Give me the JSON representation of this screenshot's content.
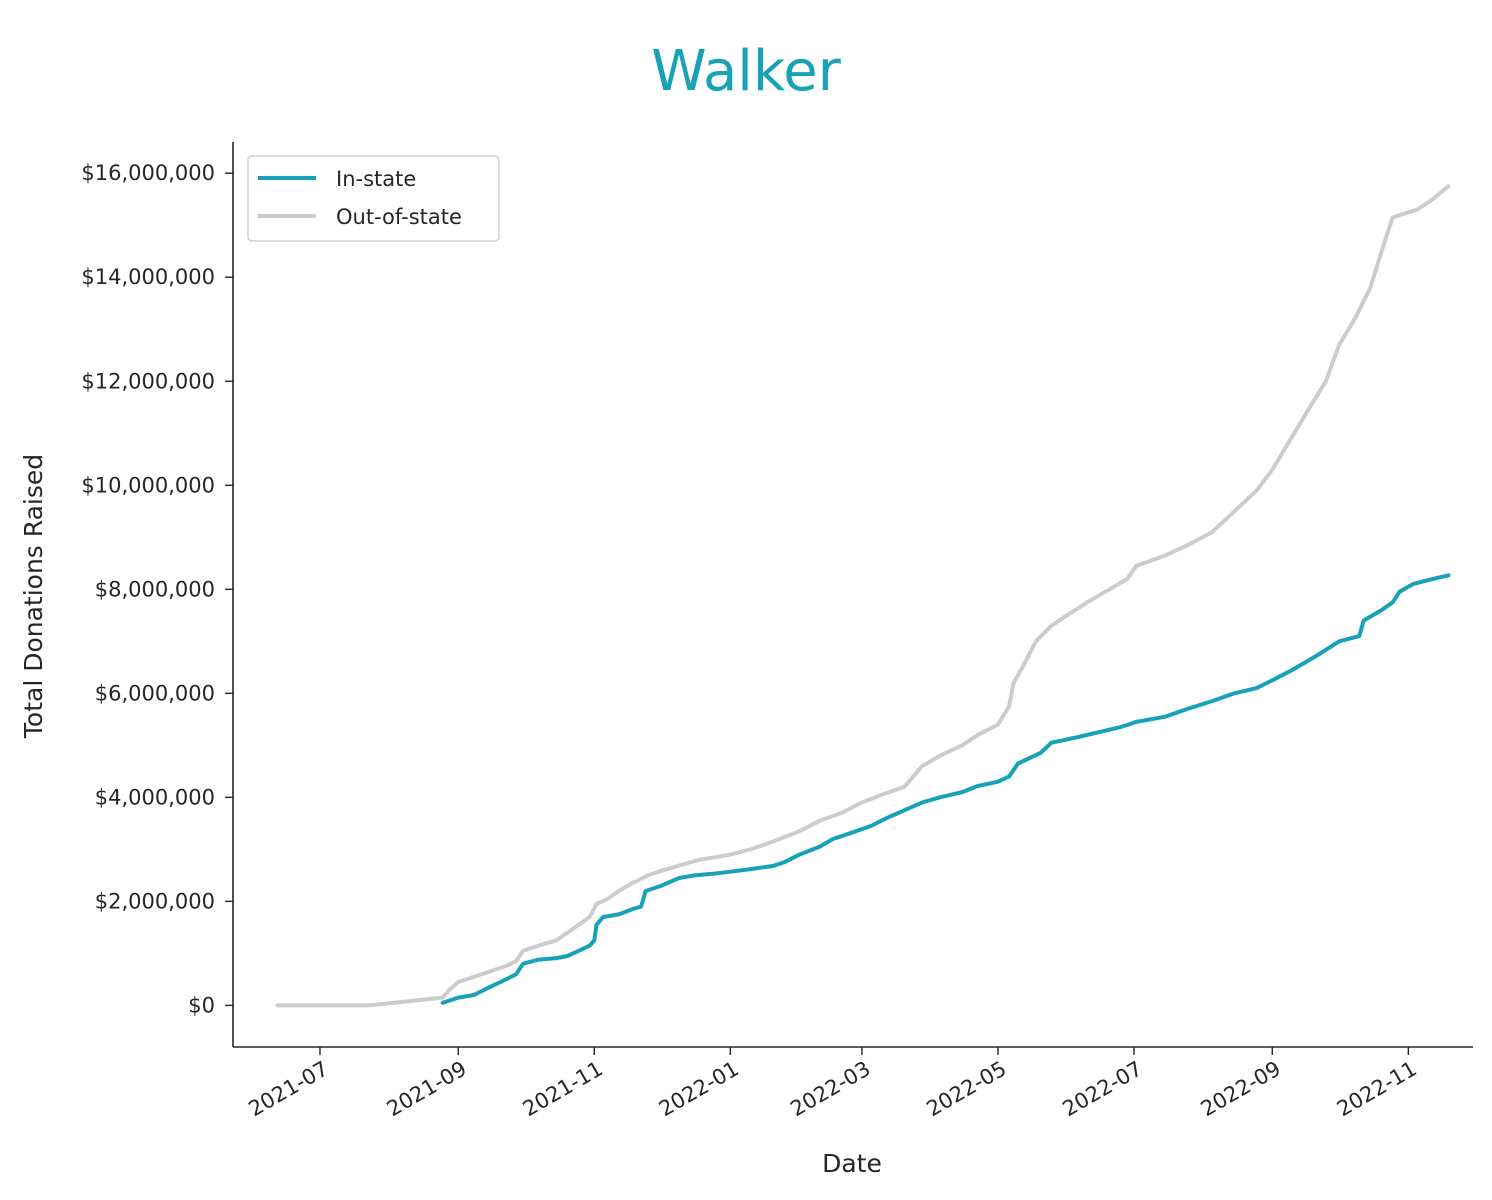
{
  "chart_data": {
    "type": "line",
    "title": "Walker",
    "xlabel": "Date",
    "ylabel": "Total Donations Raised",
    "x_ticks": [
      "2021-07",
      "2021-09",
      "2021-11",
      "2022-01",
      "2022-03",
      "2022-05",
      "2022-07",
      "2022-09",
      "2022-11"
    ],
    "y_ticks": [
      "$0",
      "$2,000,000",
      "$4,000,000",
      "$6,000,000",
      "$8,000,000",
      "$10,000,000",
      "$12,000,000",
      "$14,000,000",
      "$16,000,000"
    ],
    "xlim": [
      "2021-05-23",
      "2022-11-30"
    ],
    "ylim": [
      -800000,
      16600000
    ],
    "grid": false,
    "legend_position": "top-left",
    "series": [
      {
        "name": "In-state",
        "color": "#17a2b8",
        "points": [
          [
            "2021-08-25",
            50000
          ],
          [
            "2021-09-01",
            150000
          ],
          [
            "2021-09-08",
            200000
          ],
          [
            "2021-09-15",
            350000
          ],
          [
            "2021-09-20",
            450000
          ],
          [
            "2021-09-27",
            600000
          ],
          [
            "2021-09-30",
            800000
          ],
          [
            "2021-10-07",
            880000
          ],
          [
            "2021-10-15",
            910000
          ],
          [
            "2021-10-20",
            950000
          ],
          [
            "2021-10-25",
            1050000
          ],
          [
            "2021-10-30",
            1150000
          ],
          [
            "2021-11-01",
            1250000
          ],
          [
            "2021-11-02",
            1550000
          ],
          [
            "2021-11-05",
            1700000
          ],
          [
            "2021-11-12",
            1750000
          ],
          [
            "2021-11-18",
            1850000
          ],
          [
            "2021-11-22",
            1900000
          ],
          [
            "2021-11-24",
            2200000
          ],
          [
            "2021-12-01",
            2300000
          ],
          [
            "2021-12-09",
            2450000
          ],
          [
            "2021-12-16",
            2500000
          ],
          [
            "2021-12-24",
            2530000
          ],
          [
            "2022-01-01",
            2570000
          ],
          [
            "2022-01-10",
            2620000
          ],
          [
            "2022-01-20",
            2680000
          ],
          [
            "2022-01-25",
            2750000
          ],
          [
            "2022-02-01",
            2900000
          ],
          [
            "2022-02-10",
            3050000
          ],
          [
            "2022-02-16",
            3200000
          ],
          [
            "2022-02-23",
            3300000
          ],
          [
            "2022-03-05",
            3450000
          ],
          [
            "2022-03-12",
            3600000
          ],
          [
            "2022-03-20",
            3750000
          ],
          [
            "2022-03-28",
            3900000
          ],
          [
            "2022-04-05",
            4000000
          ],
          [
            "2022-04-15",
            4100000
          ],
          [
            "2022-04-22",
            4220000
          ],
          [
            "2022-05-01",
            4300000
          ],
          [
            "2022-05-06",
            4400000
          ],
          [
            "2022-05-10",
            4650000
          ],
          [
            "2022-05-20",
            4850000
          ],
          [
            "2022-05-25",
            5050000
          ],
          [
            "2022-06-05",
            5150000
          ],
          [
            "2022-06-15",
            5250000
          ],
          [
            "2022-06-25",
            5350000
          ],
          [
            "2022-07-02",
            5450000
          ],
          [
            "2022-07-15",
            5550000
          ],
          [
            "2022-07-25",
            5700000
          ],
          [
            "2022-08-05",
            5850000
          ],
          [
            "2022-08-15",
            6000000
          ],
          [
            "2022-08-25",
            6100000
          ],
          [
            "2022-09-01",
            6250000
          ],
          [
            "2022-09-10",
            6450000
          ],
          [
            "2022-09-20",
            6700000
          ],
          [
            "2022-10-01",
            7000000
          ],
          [
            "2022-10-10",
            7100000
          ],
          [
            "2022-10-12",
            7400000
          ],
          [
            "2022-10-20",
            7600000
          ],
          [
            "2022-10-25",
            7750000
          ],
          [
            "2022-10-28",
            7950000
          ],
          [
            "2022-11-03",
            8100000
          ],
          [
            "2022-11-12",
            8200000
          ],
          [
            "2022-11-19",
            8270000
          ]
        ]
      },
      {
        "name": "Out-of-state",
        "color": "#cccccc",
        "points": [
          [
            "2021-06-12",
            0
          ],
          [
            "2021-07-23",
            0
          ],
          [
            "2021-08-25",
            150000
          ],
          [
            "2021-08-28",
            300000
          ],
          [
            "2021-09-01",
            450000
          ],
          [
            "2021-09-08",
            550000
          ],
          [
            "2021-09-15",
            650000
          ],
          [
            "2021-09-22",
            750000
          ],
          [
            "2021-09-27",
            850000
          ],
          [
            "2021-09-30",
            1050000
          ],
          [
            "2021-10-07",
            1150000
          ],
          [
            "2021-10-15",
            1250000
          ],
          [
            "2021-10-20",
            1400000
          ],
          [
            "2021-10-25",
            1550000
          ],
          [
            "2021-10-30",
            1700000
          ],
          [
            "2021-11-02",
            1950000
          ],
          [
            "2021-11-07",
            2050000
          ],
          [
            "2021-11-12",
            2200000
          ],
          [
            "2021-11-18",
            2350000
          ],
          [
            "2021-11-25",
            2500000
          ],
          [
            "2021-12-02",
            2600000
          ],
          [
            "2021-12-10",
            2700000
          ],
          [
            "2021-12-18",
            2800000
          ],
          [
            "2022-01-01",
            2900000
          ],
          [
            "2022-01-10",
            3000000
          ],
          [
            "2022-01-20",
            3150000
          ],
          [
            "2022-02-01",
            3350000
          ],
          [
            "2022-02-10",
            3550000
          ],
          [
            "2022-02-20",
            3700000
          ],
          [
            "2022-03-01",
            3900000
          ],
          [
            "2022-03-10",
            4050000
          ],
          [
            "2022-03-20",
            4200000
          ],
          [
            "2022-03-28",
            4600000
          ],
          [
            "2022-04-05",
            4800000
          ],
          [
            "2022-04-15",
            5000000
          ],
          [
            "2022-04-22",
            5200000
          ],
          [
            "2022-05-01",
            5400000
          ],
          [
            "2022-05-06",
            5750000
          ],
          [
            "2022-05-08",
            6200000
          ],
          [
            "2022-05-12",
            6500000
          ],
          [
            "2022-05-18",
            7000000
          ],
          [
            "2022-05-25",
            7300000
          ],
          [
            "2022-06-01",
            7500000
          ],
          [
            "2022-06-10",
            7750000
          ],
          [
            "2022-06-20",
            8000000
          ],
          [
            "2022-06-28",
            8200000
          ],
          [
            "2022-07-02",
            8450000
          ],
          [
            "2022-07-15",
            8650000
          ],
          [
            "2022-07-25",
            8850000
          ],
          [
            "2022-08-05",
            9100000
          ],
          [
            "2022-08-15",
            9500000
          ],
          [
            "2022-08-25",
            9900000
          ],
          [
            "2022-09-01",
            10300000
          ],
          [
            "2022-09-08",
            10800000
          ],
          [
            "2022-09-15",
            11300000
          ],
          [
            "2022-09-25",
            12000000
          ],
          [
            "2022-10-01",
            12700000
          ],
          [
            "2022-10-08",
            13200000
          ],
          [
            "2022-10-15",
            13800000
          ],
          [
            "2022-10-20",
            14500000
          ],
          [
            "2022-10-25",
            15150000
          ],
          [
            "2022-11-05",
            15300000
          ],
          [
            "2022-11-12",
            15500000
          ],
          [
            "2022-11-19",
            15750000
          ]
        ]
      }
    ]
  }
}
